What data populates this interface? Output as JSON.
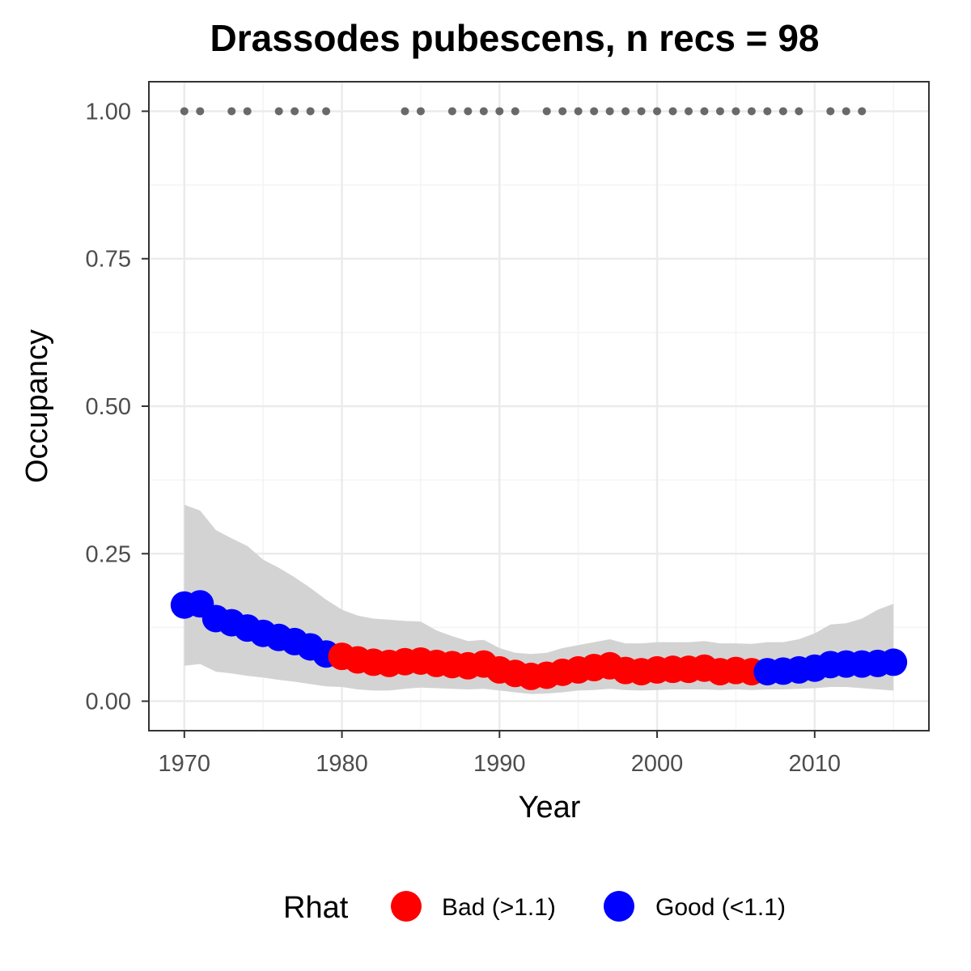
{
  "chart_data": {
    "type": "line",
    "title": "Drassodes pubescens, n recs = 98",
    "xlabel": "Year",
    "ylabel": "Occupancy",
    "xlim": [
      1967.75,
      2017.25
    ],
    "ylim": [
      -0.05,
      1.05
    ],
    "x_ticks": [
      1970,
      1980,
      1990,
      2000,
      2010
    ],
    "x_tick_labels": [
      "1970",
      "1980",
      "1990",
      "2000",
      "2010"
    ],
    "y_ticks": [
      0,
      0.25,
      0.5,
      0.75,
      1
    ],
    "y_tick_labels": [
      "0.00",
      "0.25",
      "0.50",
      "0.75",
      "1.00"
    ],
    "grid": true,
    "legend": {
      "title": "Rhat",
      "position": "bottom",
      "entries": [
        {
          "label": "Bad (>1.1)",
          "color": "#ff0000"
        },
        {
          "label": "Good (<1.1)",
          "color": "#0000ff"
        }
      ]
    },
    "record_years": [
      1970,
      1971,
      1973,
      1974,
      1976,
      1977,
      1978,
      1979,
      1984,
      1985,
      1987,
      1988,
      1989,
      1990,
      1991,
      1993,
      1994,
      1995,
      1996,
      1997,
      1998,
      1999,
      2000,
      2001,
      2002,
      2003,
      2004,
      2005,
      2006,
      2007,
      2008,
      2009,
      2011,
      2012,
      2013
    ],
    "record_value": 1.0,
    "series": [
      {
        "x": [
          1970,
          1971,
          1972,
          1973,
          1974,
          1975,
          1976,
          1977,
          1978,
          1979,
          1980,
          1981,
          1982,
          1983,
          1984,
          1985,
          1986,
          1987,
          1988,
          1989,
          1990,
          1991,
          1992,
          1993,
          1994,
          1995,
          1996,
          1997,
          1998,
          1999,
          2000,
          2001,
          2002,
          2003,
          2004,
          2005,
          2006,
          2007,
          2008,
          2009,
          2010,
          2011,
          2012,
          2013,
          2014,
          2015
        ],
        "mean": [
          0.163,
          0.165,
          0.14,
          0.133,
          0.124,
          0.115,
          0.108,
          0.101,
          0.092,
          0.08,
          0.076,
          0.07,
          0.066,
          0.064,
          0.067,
          0.068,
          0.064,
          0.062,
          0.06,
          0.063,
          0.053,
          0.047,
          0.042,
          0.044,
          0.049,
          0.053,
          0.057,
          0.06,
          0.052,
          0.05,
          0.053,
          0.054,
          0.054,
          0.056,
          0.05,
          0.052,
          0.05,
          0.05,
          0.051,
          0.053,
          0.056,
          0.062,
          0.063,
          0.063,
          0.064,
          0.066
        ],
        "lower": [
          0.06,
          0.063,
          0.05,
          0.047,
          0.043,
          0.04,
          0.036,
          0.033,
          0.029,
          0.025,
          0.024,
          0.02,
          0.018,
          0.018,
          0.021,
          0.023,
          0.022,
          0.021,
          0.02,
          0.021,
          0.018,
          0.015,
          0.012,
          0.013,
          0.015,
          0.018,
          0.019,
          0.021,
          0.019,
          0.018,
          0.019,
          0.02,
          0.02,
          0.02,
          0.019,
          0.02,
          0.019,
          0.02,
          0.02,
          0.021,
          0.022,
          0.024,
          0.024,
          0.022,
          0.02,
          0.018
        ],
        "upper": [
          0.333,
          0.323,
          0.29,
          0.276,
          0.263,
          0.24,
          0.226,
          0.21,
          0.192,
          0.172,
          0.155,
          0.145,
          0.14,
          0.138,
          0.136,
          0.135,
          0.12,
          0.11,
          0.102,
          0.104,
          0.09,
          0.082,
          0.08,
          0.082,
          0.09,
          0.095,
          0.1,
          0.105,
          0.098,
          0.098,
          0.1,
          0.1,
          0.1,
          0.102,
          0.098,
          0.098,
          0.097,
          0.1,
          0.1,
          0.105,
          0.115,
          0.13,
          0.132,
          0.14,
          0.155,
          0.165
        ],
        "rhat_class": [
          "Good (<1.1)",
          "Good (<1.1)",
          "Good (<1.1)",
          "Good (<1.1)",
          "Good (<1.1)",
          "Good (<1.1)",
          "Good (<1.1)",
          "Good (<1.1)",
          "Good (<1.1)",
          "Good (<1.1)",
          "Bad (>1.1)",
          "Bad (>1.1)",
          "Bad (>1.1)",
          "Bad (>1.1)",
          "Bad (>1.1)",
          "Bad (>1.1)",
          "Bad (>1.1)",
          "Bad (>1.1)",
          "Bad (>1.1)",
          "Bad (>1.1)",
          "Bad (>1.1)",
          "Bad (>1.1)",
          "Bad (>1.1)",
          "Bad (>1.1)",
          "Bad (>1.1)",
          "Bad (>1.1)",
          "Bad (>1.1)",
          "Bad (>1.1)",
          "Bad (>1.1)",
          "Bad (>1.1)",
          "Bad (>1.1)",
          "Bad (>1.1)",
          "Bad (>1.1)",
          "Bad (>1.1)",
          "Bad (>1.1)",
          "Bad (>1.1)",
          "Bad (>1.1)",
          "Good (<1.1)",
          "Good (<1.1)",
          "Good (<1.1)",
          "Good (<1.1)",
          "Good (<1.1)",
          "Good (<1.1)",
          "Good (<1.1)",
          "Good (<1.1)",
          "Good (<1.1)"
        ]
      }
    ],
    "colors": {
      "ribbon": "#d3d3d3",
      "record_points": "#696969",
      "grid_major": "#ebebeb",
      "grid_minor": "#f4f4f4",
      "panel_border": "#333333"
    }
  }
}
